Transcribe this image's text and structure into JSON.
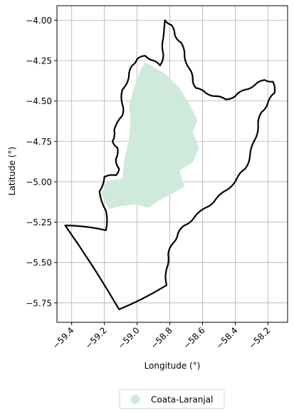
{
  "chart_data": {
    "type": "map",
    "xlabel": "Longitude (°)",
    "ylabel": "Latitude (°)",
    "xlim": [
      -59.49,
      -58.08
    ],
    "ylim": [
      -5.87,
      -3.91
    ],
    "x_ticks": [
      -59.4,
      -59.2,
      -59.0,
      -58.8,
      -58.6,
      -58.4,
      -58.2
    ],
    "x_tick_labels": [
      "−59.4",
      "−59.2",
      "−59.0",
      "−58.8",
      "−58.6",
      "−58.4",
      "−58.2"
    ],
    "y_ticks": [
      -4.0,
      -4.25,
      -4.5,
      -4.75,
      -5.0,
      -5.25,
      -5.5,
      -5.75
    ],
    "y_tick_labels": [
      "−4.00",
      "−4.25",
      "−4.50",
      "−4.75",
      "−5.00",
      "−5.25",
      "−5.50",
      "−5.75"
    ],
    "grid": true,
    "legend": {
      "placement": "bottom-center",
      "entries": [
        {
          "label": "Coata-Laranjal",
          "color": "#cfeadb",
          "marker": "circle"
        }
      ]
    },
    "region": {
      "name": "Coata-Laranjal",
      "color": "#cfeadb",
      "polygon": [
        [
          -58.95,
          -4.26
        ],
        [
          -58.83,
          -4.33
        ],
        [
          -58.74,
          -4.42
        ],
        [
          -58.68,
          -4.52
        ],
        [
          -58.63,
          -4.62
        ],
        [
          -58.66,
          -4.69
        ],
        [
          -58.62,
          -4.79
        ],
        [
          -58.66,
          -4.88
        ],
        [
          -58.74,
          -4.93
        ],
        [
          -58.71,
          -5.03
        ],
        [
          -58.78,
          -5.07
        ],
        [
          -58.84,
          -5.1
        ],
        [
          -58.93,
          -5.16
        ],
        [
          -59.01,
          -5.14
        ],
        [
          -59.1,
          -5.15
        ],
        [
          -59.17,
          -5.17
        ],
        [
          -59.22,
          -5.08
        ],
        [
          -59.2,
          -5.02
        ],
        [
          -59.16,
          -4.99
        ],
        [
          -59.09,
          -4.98
        ],
        [
          -59.08,
          -4.87
        ],
        [
          -59.05,
          -4.74
        ],
        [
          -59.04,
          -4.64
        ],
        [
          -59.05,
          -4.53
        ],
        [
          -59.02,
          -4.42
        ],
        [
          -58.98,
          -4.31
        ]
      ]
    },
    "boundary": {
      "stroke": "#000000",
      "polygon": [
        [
          -58.83,
          -4.0
        ],
        [
          -58.79,
          -4.03
        ],
        [
          -58.77,
          -4.09
        ],
        [
          -58.73,
          -4.14
        ],
        [
          -58.71,
          -4.22
        ],
        [
          -58.68,
          -4.3
        ],
        [
          -58.66,
          -4.37
        ],
        [
          -58.64,
          -4.42
        ],
        [
          -58.58,
          -4.45
        ],
        [
          -58.52,
          -4.47
        ],
        [
          -58.46,
          -4.49
        ],
        [
          -58.4,
          -4.47
        ],
        [
          -58.34,
          -4.43
        ],
        [
          -58.28,
          -4.4
        ],
        [
          -58.22,
          -4.37
        ],
        [
          -58.17,
          -4.38
        ],
        [
          -58.16,
          -4.45
        ],
        [
          -58.2,
          -4.51
        ],
        [
          -58.24,
          -4.57
        ],
        [
          -58.26,
          -4.65
        ],
        [
          -58.28,
          -4.74
        ],
        [
          -58.31,
          -4.84
        ],
        [
          -58.34,
          -4.92
        ],
        [
          -58.39,
          -4.98
        ],
        [
          -58.45,
          -5.05
        ],
        [
          -58.52,
          -5.11
        ],
        [
          -58.58,
          -5.16
        ],
        [
          -58.65,
          -5.22
        ],
        [
          -58.71,
          -5.27
        ],
        [
          -58.75,
          -5.32
        ],
        [
          -58.78,
          -5.38
        ],
        [
          -58.81,
          -5.45
        ],
        [
          -58.82,
          -5.54
        ],
        [
          -58.82,
          -5.64
        ],
        [
          -59.11,
          -5.79
        ],
        [
          -59.44,
          -5.27
        ],
        [
          -59.19,
          -5.3
        ],
        [
          -59.19,
          -5.18
        ],
        [
          -59.23,
          -5.06
        ],
        [
          -59.2,
          -4.97
        ],
        [
          -59.13,
          -4.96
        ],
        [
          -59.11,
          -4.92
        ],
        [
          -59.13,
          -4.86
        ],
        [
          -59.12,
          -4.79
        ],
        [
          -59.15,
          -4.75
        ],
        [
          -59.14,
          -4.68
        ],
        [
          -59.09,
          -4.59
        ],
        [
          -59.09,
          -4.52
        ],
        [
          -59.09,
          -4.43
        ],
        [
          -59.05,
          -4.35
        ],
        [
          -59.03,
          -4.28
        ],
        [
          -59.0,
          -4.24
        ],
        [
          -58.95,
          -4.22
        ],
        [
          -58.9,
          -4.25
        ],
        [
          -58.86,
          -4.28
        ],
        [
          -58.84,
          -4.21
        ],
        [
          -58.84,
          -4.11
        ]
      ]
    }
  }
}
